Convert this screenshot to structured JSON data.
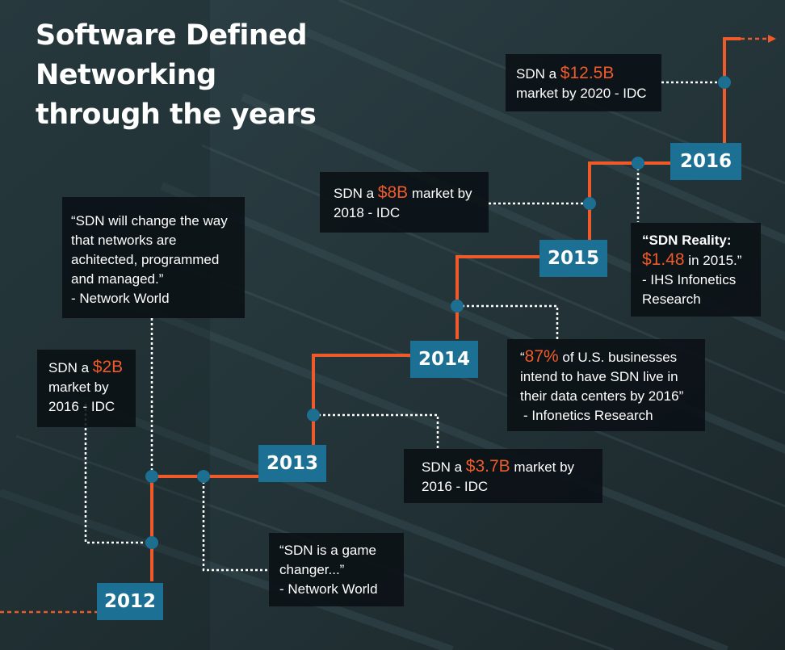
{
  "title": {
    "line1": "Software Defined",
    "line2": "Networking",
    "line3": "through the years"
  },
  "years": [
    "2012",
    "2013",
    "2014",
    "2015",
    "2016"
  ],
  "colors": {
    "accent": "#ef5a2a",
    "year_box": "#1c7093",
    "node": "#1c6f91",
    "box_bg": "#0a1014"
  },
  "callouts": {
    "q2012": {
      "text": "“SDN will change the way that networks are achitected, programmed and managed.”",
      "source": "- Network World"
    },
    "m2012": {
      "pre": "SDN a ",
      "value": "$2B",
      "post1": "market by",
      "post2": "2016 - IDC"
    },
    "q2013": {
      "text": "“SDN is a game changer...”",
      "source": "- Network World"
    },
    "m2013": {
      "pre": "SDN a ",
      "value": "$3.7B",
      "post": " market by",
      "post2": "2016 - IDC"
    },
    "q2014": {
      "open": "“",
      "value": "87%",
      "text": " of U.S. businesses intend to have SDN live in their data centers by 2016”",
      "source": "- Infonetics Research"
    },
    "m2015": {
      "pre": "SDN a ",
      "value": "$8B",
      "post": " market by",
      "post2": "2018 - IDC"
    },
    "q2015": {
      "head": "“SDN Reality:",
      "value": "$1.48",
      "post": " in 2015.”",
      "source1": "- IHS Infonetics",
      "source2": "Research"
    },
    "m2016": {
      "pre": "SDN a ",
      "value": "$12.5B",
      "post": "market by 2020 - IDC"
    }
  }
}
